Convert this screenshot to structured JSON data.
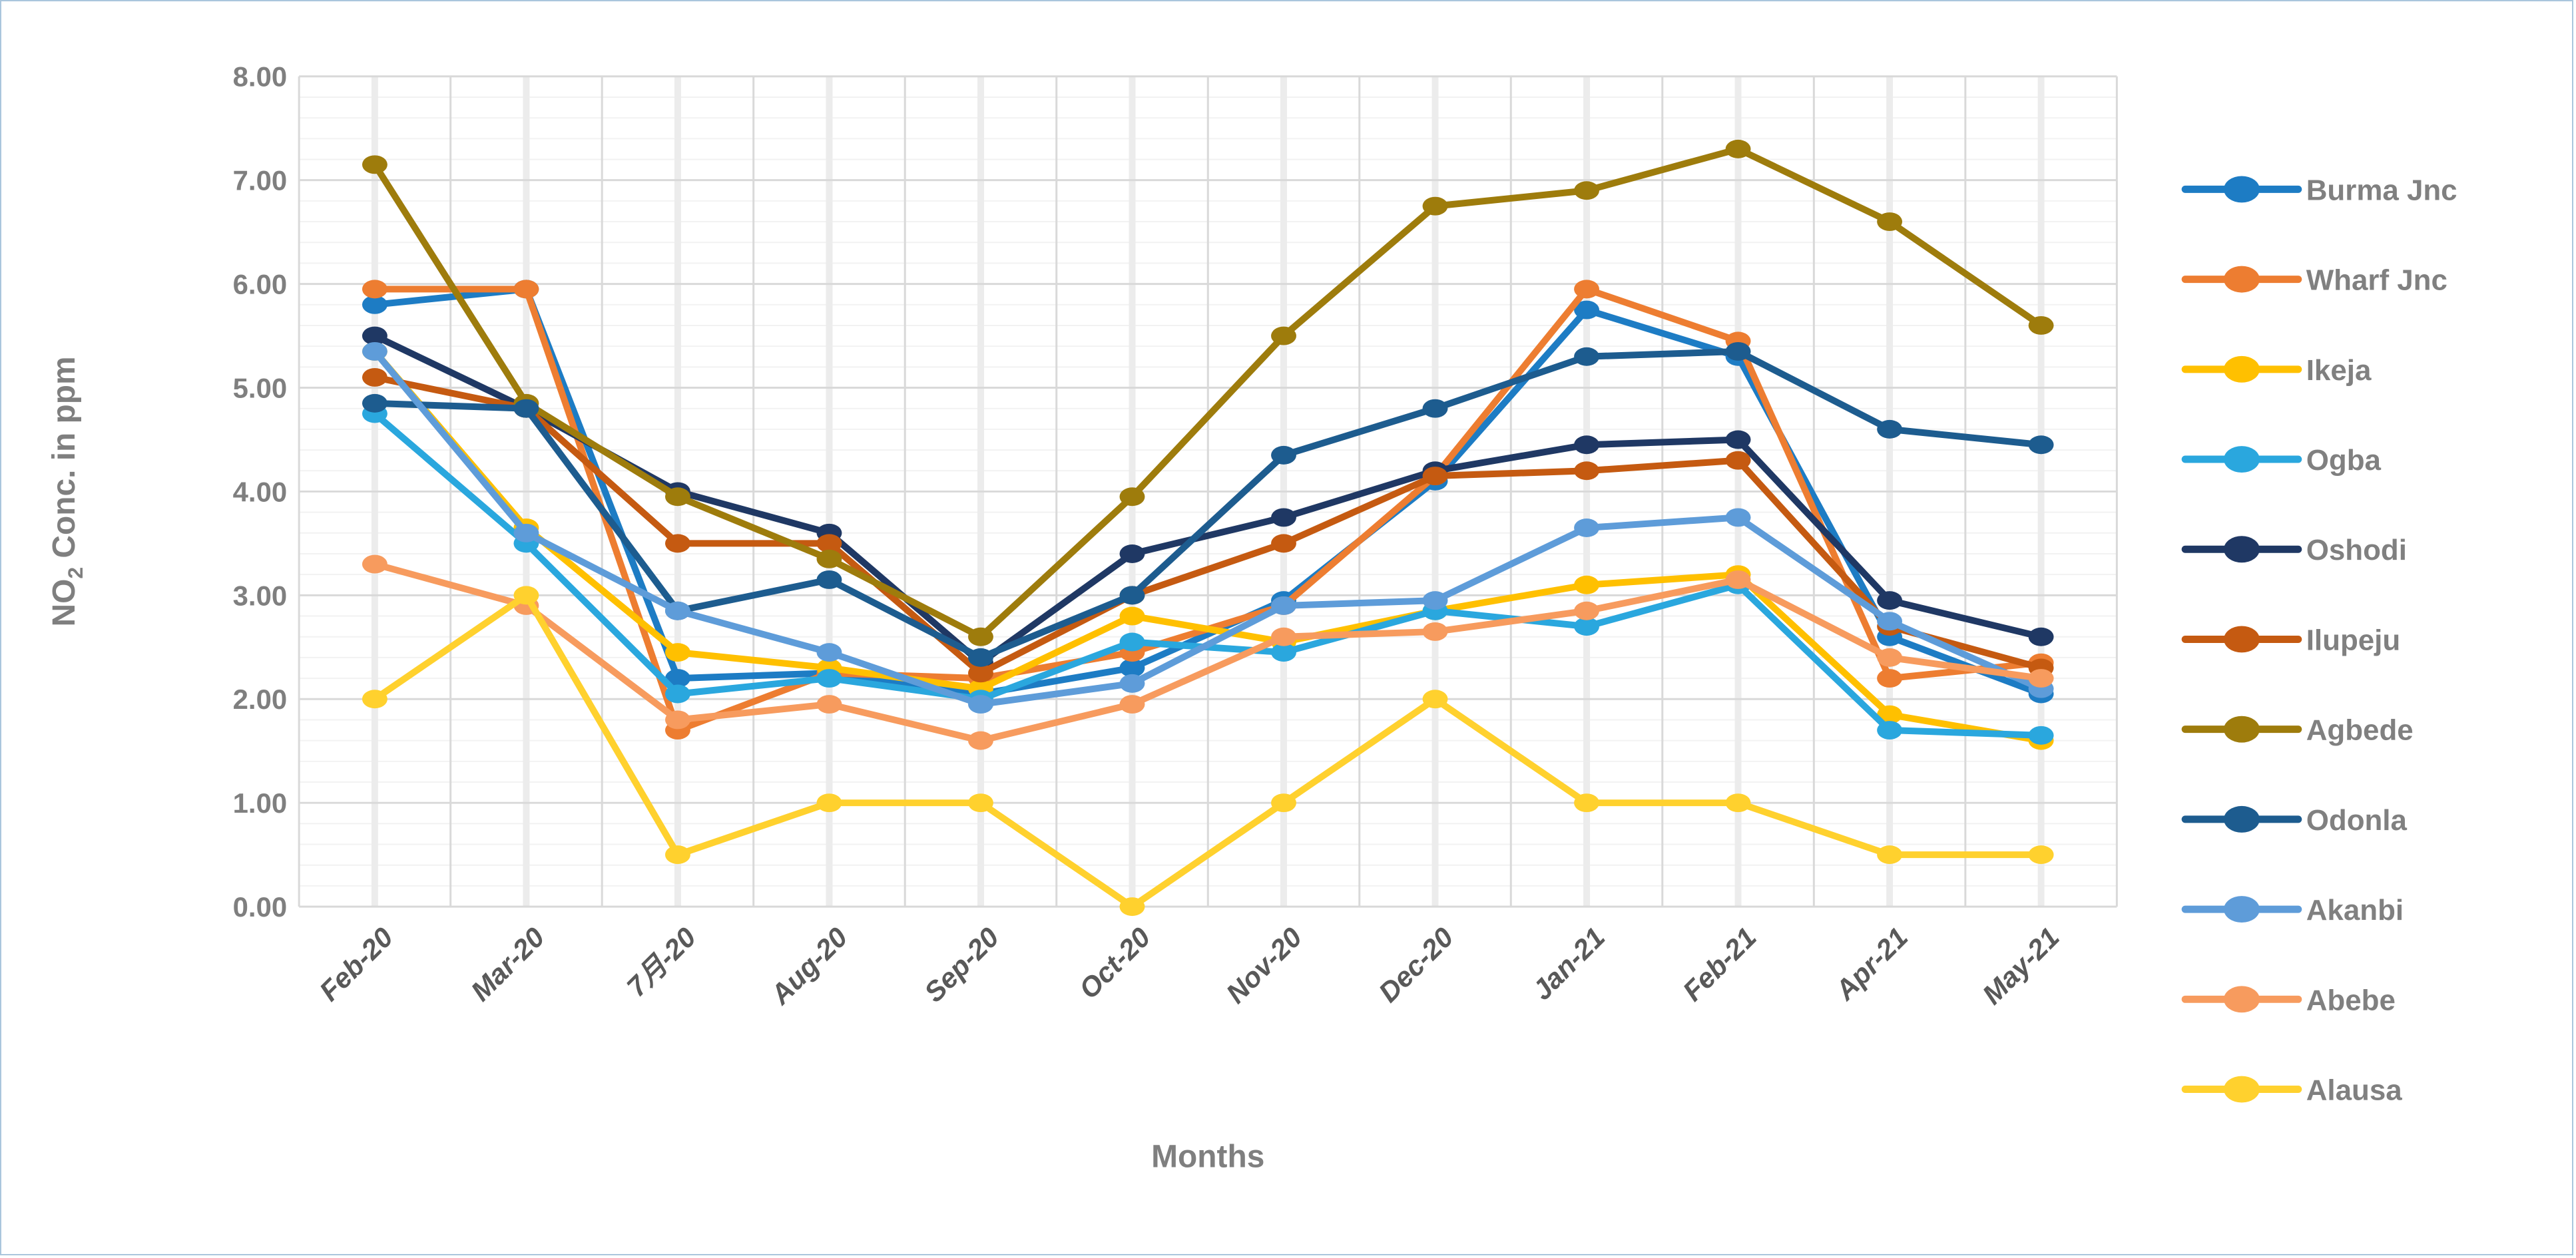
{
  "chart_data": {
    "type": "line",
    "title": "",
    "xlabel": "Months",
    "ylabel": {
      "base": "NO",
      "sub": "2",
      "rest": " Conc. in ppm"
    },
    "ylim": [
      0,
      8
    ],
    "y_tick_step": 1,
    "y_minor_step": 0.2,
    "y_tick_labels": [
      "0.00",
      "1.00",
      "2.00",
      "3.00",
      "4.00",
      "5.00",
      "6.00",
      "7.00",
      "8.00"
    ],
    "grid": {
      "major_horizontal": true,
      "minor_horizontal": true,
      "vertical_boundaries": true,
      "vertical_center_stripes": true
    },
    "legend_position": "right",
    "categories": [
      "Feb-20",
      "Mar-20",
      "7月-20",
      "Aug-20",
      "Sep-20",
      "Oct-20",
      "Nov-20",
      "Dec-20",
      "Jan-21",
      "Feb-21",
      "Apr-21",
      "May-21"
    ],
    "series": [
      {
        "name": "Burma Jnc",
        "color": "#1d7cc4",
        "values": [
          5.8,
          5.95,
          2.2,
          2.25,
          2.05,
          2.3,
          2.95,
          4.1,
          5.75,
          5.3,
          2.6,
          2.05
        ]
      },
      {
        "name": "Wharf Jnc",
        "color": "#ed7d31",
        "values": [
          5.95,
          5.95,
          1.7,
          2.25,
          2.2,
          2.45,
          2.9,
          4.15,
          5.95,
          5.45,
          2.2,
          2.35
        ]
      },
      {
        "name": "Ikeja",
        "color": "#ffc000",
        "values": [
          5.35,
          3.65,
          2.45,
          2.3,
          2.1,
          2.8,
          2.55,
          2.85,
          3.1,
          3.2,
          1.85,
          1.6
        ]
      },
      {
        "name": "Ogba",
        "color": "#2aa7de",
        "values": [
          4.75,
          3.5,
          2.05,
          2.2,
          2.0,
          2.55,
          2.45,
          2.85,
          2.7,
          3.1,
          1.7,
          1.65
        ]
      },
      {
        "name": "Oshodi",
        "color": "#1f3864",
        "values": [
          5.5,
          4.8,
          4.0,
          3.6,
          2.35,
          3.4,
          3.75,
          4.2,
          4.45,
          4.5,
          2.95,
          2.6
        ]
      },
      {
        "name": "Ilupeju",
        "color": "#c55a11",
        "values": [
          5.1,
          4.8,
          3.5,
          3.5,
          2.25,
          3.0,
          3.5,
          4.15,
          4.2,
          4.3,
          2.7,
          2.3
        ]
      },
      {
        "name": "Agbede",
        "color": "#9e7c0c",
        "values": [
          7.15,
          4.85,
          3.95,
          3.35,
          2.6,
          3.95,
          5.5,
          6.75,
          6.9,
          7.3,
          6.6,
          5.6
        ]
      },
      {
        "name": "Odonla",
        "color": "#1d5c8f",
        "values": [
          4.85,
          4.8,
          2.85,
          3.15,
          2.4,
          3.0,
          4.35,
          4.8,
          5.3,
          5.35,
          4.6,
          4.45
        ]
      },
      {
        "name": "Akanbi",
        "color": "#5e9cd9",
        "values": [
          5.35,
          3.6,
          2.85,
          2.45,
          1.95,
          2.15,
          2.9,
          2.95,
          3.65,
          3.75,
          2.75,
          2.1
        ]
      },
      {
        "name": "Abebe",
        "color": "#f79b5e",
        "values": [
          3.3,
          2.9,
          1.8,
          1.95,
          1.6,
          1.95,
          2.6,
          2.65,
          2.85,
          3.15,
          2.4,
          2.2
        ]
      },
      {
        "name": "Alausa",
        "color": "#ffd12e",
        "values": [
          2.0,
          3.0,
          0.5,
          1.0,
          1.0,
          0.0,
          1.0,
          2.0,
          1.0,
          1.0,
          0.5,
          0.5
        ]
      }
    ]
  }
}
